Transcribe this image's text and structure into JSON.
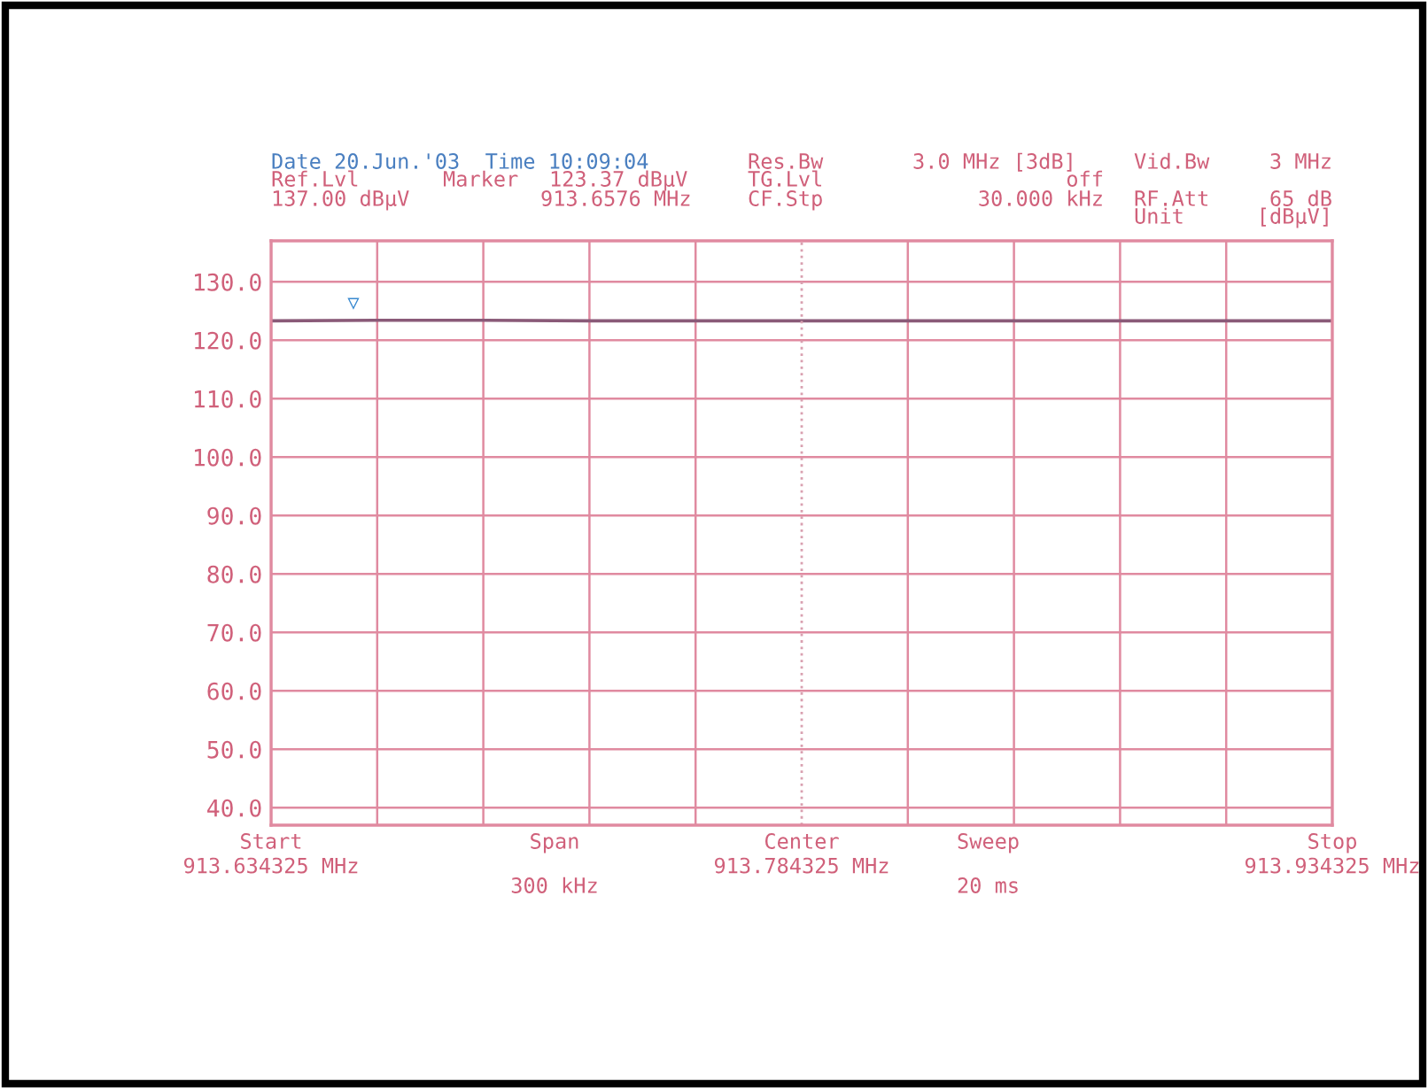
{
  "chart_data": {
    "type": "line",
    "x": [
      913.634325,
      913.664325,
      913.694325,
      913.724325,
      913.754325,
      913.784325,
      913.814325,
      913.844325,
      913.874325,
      913.904325,
      913.934325
    ],
    "series": [
      {
        "color": "#8a5a78",
        "values": [
          123.3,
          123.4,
          123.4,
          123.3,
          123.3,
          123.3,
          123.3,
          123.3,
          123.3,
          123.3,
          123.3
        ]
      }
    ],
    "xlim": [
      913.634325,
      913.934325
    ],
    "xticks": [
      {
        "value": 913.634325,
        "label": "913.634325 MHz"
      },
      {
        "value": 913.784325,
        "label": "913.784325 MHz"
      },
      {
        "value": 913.934325,
        "label": "913.934325 MHz"
      },
      {
        "value": 913.664325,
        "label": null
      },
      {
        "value": 913.694325,
        "label": null
      },
      {
        "value": 913.724325,
        "label": null
      },
      {
        "value": 913.754325,
        "label": null
      },
      {
        "value": 913.814325,
        "label": null
      },
      {
        "value": 913.844325,
        "label": null
      },
      {
        "value": 913.874325,
        "label": null
      },
      {
        "value": 913.904325,
        "label": null
      }
    ],
    "ylim": [
      37,
      137
    ],
    "yticks": [
      {
        "value": 40,
        "label": "40.0"
      },
      {
        "value": 50,
        "label": "50.0"
      },
      {
        "value": 60,
        "label": "60.0"
      },
      {
        "value": 70,
        "label": "70.0"
      },
      {
        "value": 80,
        "label": "80.0"
      },
      {
        "value": 90,
        "label": "90.0"
      },
      {
        "value": 100,
        "label": "100.0"
      },
      {
        "value": 110,
        "label": "110.0"
      },
      {
        "value": 120,
        "label": "120.0"
      },
      {
        "value": 130,
        "label": "130.0"
      }
    ],
    "grid": true,
    "marker": "none",
    "line_style": "solid",
    "ref_lines": [
      {
        "axis": "x",
        "value": 913.784325,
        "line_style": "dotted",
        "color": "#d9a0b0"
      }
    ],
    "annotations": [
      "Date 20.Jun.'03  Time 10:09:04",
      "Ref.Lvl",
      "137.00 dBµV",
      "Marker",
      "123.37 dBµV",
      "913.6576 MHz",
      "Res.Bw",
      "TG.Lvl",
      "CF.Stp",
      "3.0 MHz [3dB]",
      "off",
      "30.000 kHz",
      "Vid.Bw",
      "RF.Att",
      "Unit",
      "3 MHz",
      "65 dB",
      "[dBµV]",
      "Start",
      "Span",
      "300 kHz",
      "Center",
      "Sweep",
      "20 ms",
      "Stop",
      {
        "text": "▽",
        "x": 913.6576,
        "y": 123.37
      }
    ]
  }
}
